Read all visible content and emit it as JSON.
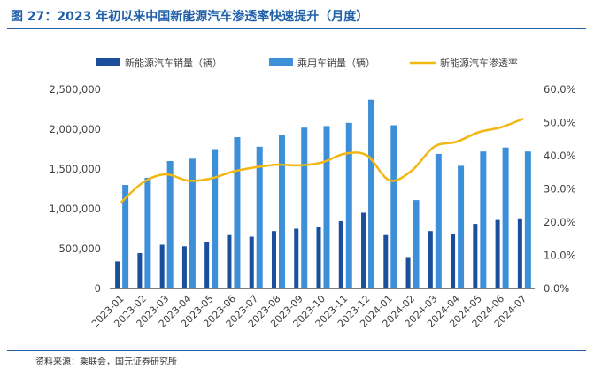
{
  "figure": {
    "title": "图 27：2023 年初以来中国新能源汽车渗透率快速提升（月度）",
    "source": "资料来源：乘联会，国元证券研究所"
  },
  "colors": {
    "title": "#1f5fa8",
    "nev_bar": "#1b4f9c",
    "pv_bar": "#3d8fd8",
    "penetration_line": "#f2b712",
    "axis_text": "#404040",
    "gridline": "#bfbfbf"
  },
  "chart_data": {
    "type": "bar",
    "categories": [
      "2023-01",
      "2023-02",
      "2023-03",
      "2023-04",
      "2023-05",
      "2023-06",
      "2023-07",
      "2023-08",
      "2023-09",
      "2023-10",
      "2023-11",
      "2023-12",
      "2024-01",
      "2024-02",
      "2024-03",
      "2024-04",
      "2024-05",
      "2024-06",
      "2024-07"
    ],
    "series": [
      {
        "name": "新能源汽车销量（辆）",
        "type": "bar",
        "axis": "left",
        "values": [
          340000,
          445000,
          550000,
          530000,
          580000,
          670000,
          650000,
          720000,
          750000,
          775000,
          845000,
          950000,
          670000,
          395000,
          720000,
          680000,
          810000,
          860000,
          880000
        ]
      },
      {
        "name": "乘用车销量（辆）",
        "type": "bar",
        "axis": "left",
        "values": [
          1300000,
          1390000,
          1600000,
          1630000,
          1750000,
          1900000,
          1780000,
          1930000,
          2020000,
          2040000,
          2080000,
          2370000,
          2050000,
          1110000,
          1690000,
          1540000,
          1720000,
          1770000,
          1720000
        ]
      },
      {
        "name": "新能源汽车渗透率",
        "type": "line",
        "axis": "right",
        "values": [
          25.9,
          32.0,
          34.4,
          32.5,
          33.1,
          35.2,
          36.5,
          37.3,
          37.1,
          38.0,
          40.6,
          40.1,
          32.6,
          35.5,
          42.7,
          44.2,
          47.1,
          48.6,
          51.2
        ]
      }
    ],
    "y_left": {
      "ylim": [
        0,
        2500000
      ],
      "tick_values": [
        0,
        500000,
        1000000,
        1500000,
        2000000,
        2500000
      ],
      "tick_labels": [
        "0",
        "500,000",
        "1,000,000",
        "1,500,000",
        "2,000,000",
        "2,500,000"
      ]
    },
    "y_right": {
      "ylim": [
        0,
        60
      ],
      "tick_values": [
        0,
        10,
        20,
        30,
        40,
        50,
        60
      ],
      "tick_labels": [
        "0.0%",
        "10.0%",
        "20.0%",
        "30.0%",
        "40.0%",
        "50.0%",
        "60.0%"
      ]
    },
    "grid": false,
    "legend_position": "top"
  }
}
